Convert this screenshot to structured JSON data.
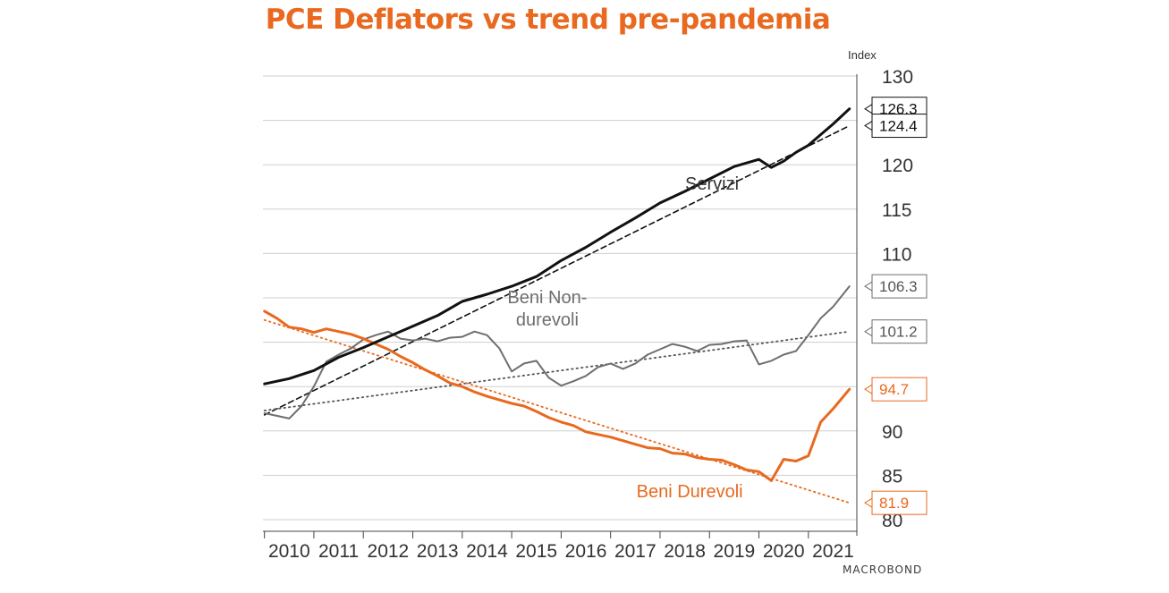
{
  "title": "PCE Deflators vs trend pre-pandemia",
  "brand": "MACROBOND",
  "chart_data": {
    "type": "line",
    "y_unit_label": "Index",
    "ylim": [
      80,
      130
    ],
    "y_ticks": [
      80,
      85,
      90,
      95,
      100,
      105,
      110,
      115,
      120,
      125,
      130
    ],
    "y_tick_labels": [
      "80",
      "85",
      "90",
      "",
      "",
      "",
      "110",
      "115",
      "120",
      "",
      "130"
    ],
    "x_labels": [
      "2010",
      "2011",
      "2012",
      "2013",
      "2014",
      "2015",
      "2016",
      "2017",
      "2018",
      "2019",
      "2020",
      "2021"
    ],
    "xlim": [
      2009.97,
      2021.98
    ],
    "grid": true,
    "series": [
      {
        "name": "Servizi",
        "style": "solid",
        "color": "#111111",
        "x": [
          2010.0,
          2010.5,
          2011.0,
          2011.5,
          2012.0,
          2012.5,
          2013.0,
          2013.5,
          2014.0,
          2014.5,
          2015.0,
          2015.5,
          2016.0,
          2016.5,
          2017.0,
          2017.5,
          2018.0,
          2018.5,
          2019.0,
          2019.5,
          2020.0,
          2020.25,
          2020.5,
          2020.75,
          2021.0,
          2021.25,
          2021.5,
          2021.83
        ],
        "y": [
          95.3,
          95.9,
          96.8,
          98.3,
          99.4,
          100.6,
          101.8,
          103.0,
          104.6,
          105.4,
          106.3,
          107.4,
          109.2,
          110.7,
          112.4,
          114.0,
          115.7,
          117.0,
          118.4,
          119.8,
          120.6,
          119.7,
          120.4,
          121.4,
          122.2,
          123.4,
          124.6,
          126.3
        ]
      },
      {
        "name": "Servizi trend",
        "style": "dashed",
        "color": "#111111",
        "x": [
          2010.0,
          2021.83
        ],
        "y": [
          91.8,
          124.4
        ]
      },
      {
        "name": "Beni Non-durevoli",
        "style": "solid",
        "color": "#6e6e6e",
        "x": [
          2010.0,
          2010.25,
          2010.5,
          2010.75,
          2011.0,
          2011.25,
          2011.5,
          2011.75,
          2012.0,
          2012.25,
          2012.5,
          2012.75,
          2013.0,
          2013.25,
          2013.5,
          2013.75,
          2014.0,
          2014.25,
          2014.5,
          2014.75,
          2015.0,
          2015.25,
          2015.5,
          2015.75,
          2016.0,
          2016.25,
          2016.5,
          2016.75,
          2017.0,
          2017.25,
          2017.5,
          2017.75,
          2018.0,
          2018.25,
          2018.5,
          2018.75,
          2019.0,
          2019.25,
          2019.5,
          2019.75,
          2020.0,
          2020.25,
          2020.5,
          2020.75,
          2021.0,
          2021.25,
          2021.5,
          2021.83
        ],
        "y": [
          92.0,
          91.7,
          91.4,
          92.8,
          95.0,
          97.8,
          98.6,
          99.3,
          100.3,
          100.8,
          101.2,
          100.4,
          100.2,
          100.4,
          100.1,
          100.5,
          100.6,
          101.2,
          100.8,
          99.3,
          96.7,
          97.6,
          97.9,
          96.0,
          95.1,
          95.6,
          96.2,
          97.2,
          97.6,
          97.0,
          97.6,
          98.6,
          99.2,
          99.8,
          99.5,
          99.0,
          99.7,
          99.8,
          100.1,
          100.2,
          97.5,
          97.9,
          98.6,
          99.0,
          100.8,
          102.7,
          104.0,
          106.3
        ]
      },
      {
        "name": "Beni Non-durevoli trend",
        "style": "dotted",
        "color": "#555555",
        "x": [
          2010.0,
          2021.83
        ],
        "y": [
          92.3,
          101.2
        ]
      },
      {
        "name": "Beni Durevoli",
        "style": "solid",
        "color": "#e8691f",
        "x": [
          2010.0,
          2010.25,
          2010.5,
          2010.75,
          2011.0,
          2011.25,
          2011.5,
          2011.75,
          2012.0,
          2012.25,
          2012.5,
          2012.75,
          2013.0,
          2013.25,
          2013.5,
          2013.75,
          2014.0,
          2014.25,
          2014.5,
          2014.75,
          2015.0,
          2015.25,
          2015.5,
          2015.75,
          2016.0,
          2016.25,
          2016.5,
          2016.75,
          2017.0,
          2017.25,
          2017.5,
          2017.75,
          2018.0,
          2018.25,
          2018.5,
          2018.75,
          2019.0,
          2019.25,
          2019.5,
          2019.75,
          2020.0,
          2020.25,
          2020.5,
          2020.75,
          2021.0,
          2021.25,
          2021.5,
          2021.83
        ],
        "y": [
          103.5,
          102.7,
          101.7,
          101.5,
          101.1,
          101.5,
          101.2,
          100.9,
          100.4,
          99.8,
          99.2,
          98.4,
          97.7,
          96.9,
          96.2,
          95.4,
          95.0,
          94.4,
          93.9,
          93.5,
          93.1,
          92.8,
          92.2,
          91.5,
          91.0,
          90.6,
          89.9,
          89.6,
          89.3,
          88.9,
          88.5,
          88.1,
          88.0,
          87.5,
          87.4,
          87.0,
          86.8,
          86.7,
          86.2,
          85.6,
          85.4,
          84.4,
          86.8,
          86.6,
          87.2,
          91.0,
          92.5,
          94.7
        ]
      },
      {
        "name": "Beni Durevoli trend",
        "style": "dotted",
        "color": "#e8691f",
        "x": [
          2010.0,
          2021.83
        ],
        "y": [
          102.5,
          81.9
        ]
      }
    ],
    "series_labels": [
      {
        "text": "Servizi",
        "color": "#333333",
        "at": [
          2019.05,
          117.2
        ]
      },
      {
        "text": "Beni Non-",
        "color": "#6e6e6e",
        "at": [
          2015.72,
          104.4
        ]
      },
      {
        "text": "durevoli",
        "color": "#6e6e6e",
        "at": [
          2015.72,
          101.9
        ]
      },
      {
        "text": "Beni Durevoli",
        "color": "#e8691f",
        "at": [
          2018.6,
          82.5
        ]
      }
    ],
    "end_labels": [
      {
        "text": "126.3",
        "value": 126.3,
        "border": "#111111",
        "text_color": "#111111"
      },
      {
        "text": "124.4",
        "value": 124.4,
        "border": "#111111",
        "text_color": "#111111"
      },
      {
        "text": "106.3",
        "value": 106.3,
        "border": "#6e6e6e",
        "text_color": "#555555"
      },
      {
        "text": "101.2",
        "value": 101.2,
        "border": "#6e6e6e",
        "text_color": "#555555"
      },
      {
        "text": "94.7",
        "value": 94.7,
        "border": "#e8691f",
        "text_color": "#e8691f"
      },
      {
        "text": "81.9",
        "value": 81.9,
        "border": "#e8691f",
        "text_color": "#e8691f"
      }
    ]
  }
}
